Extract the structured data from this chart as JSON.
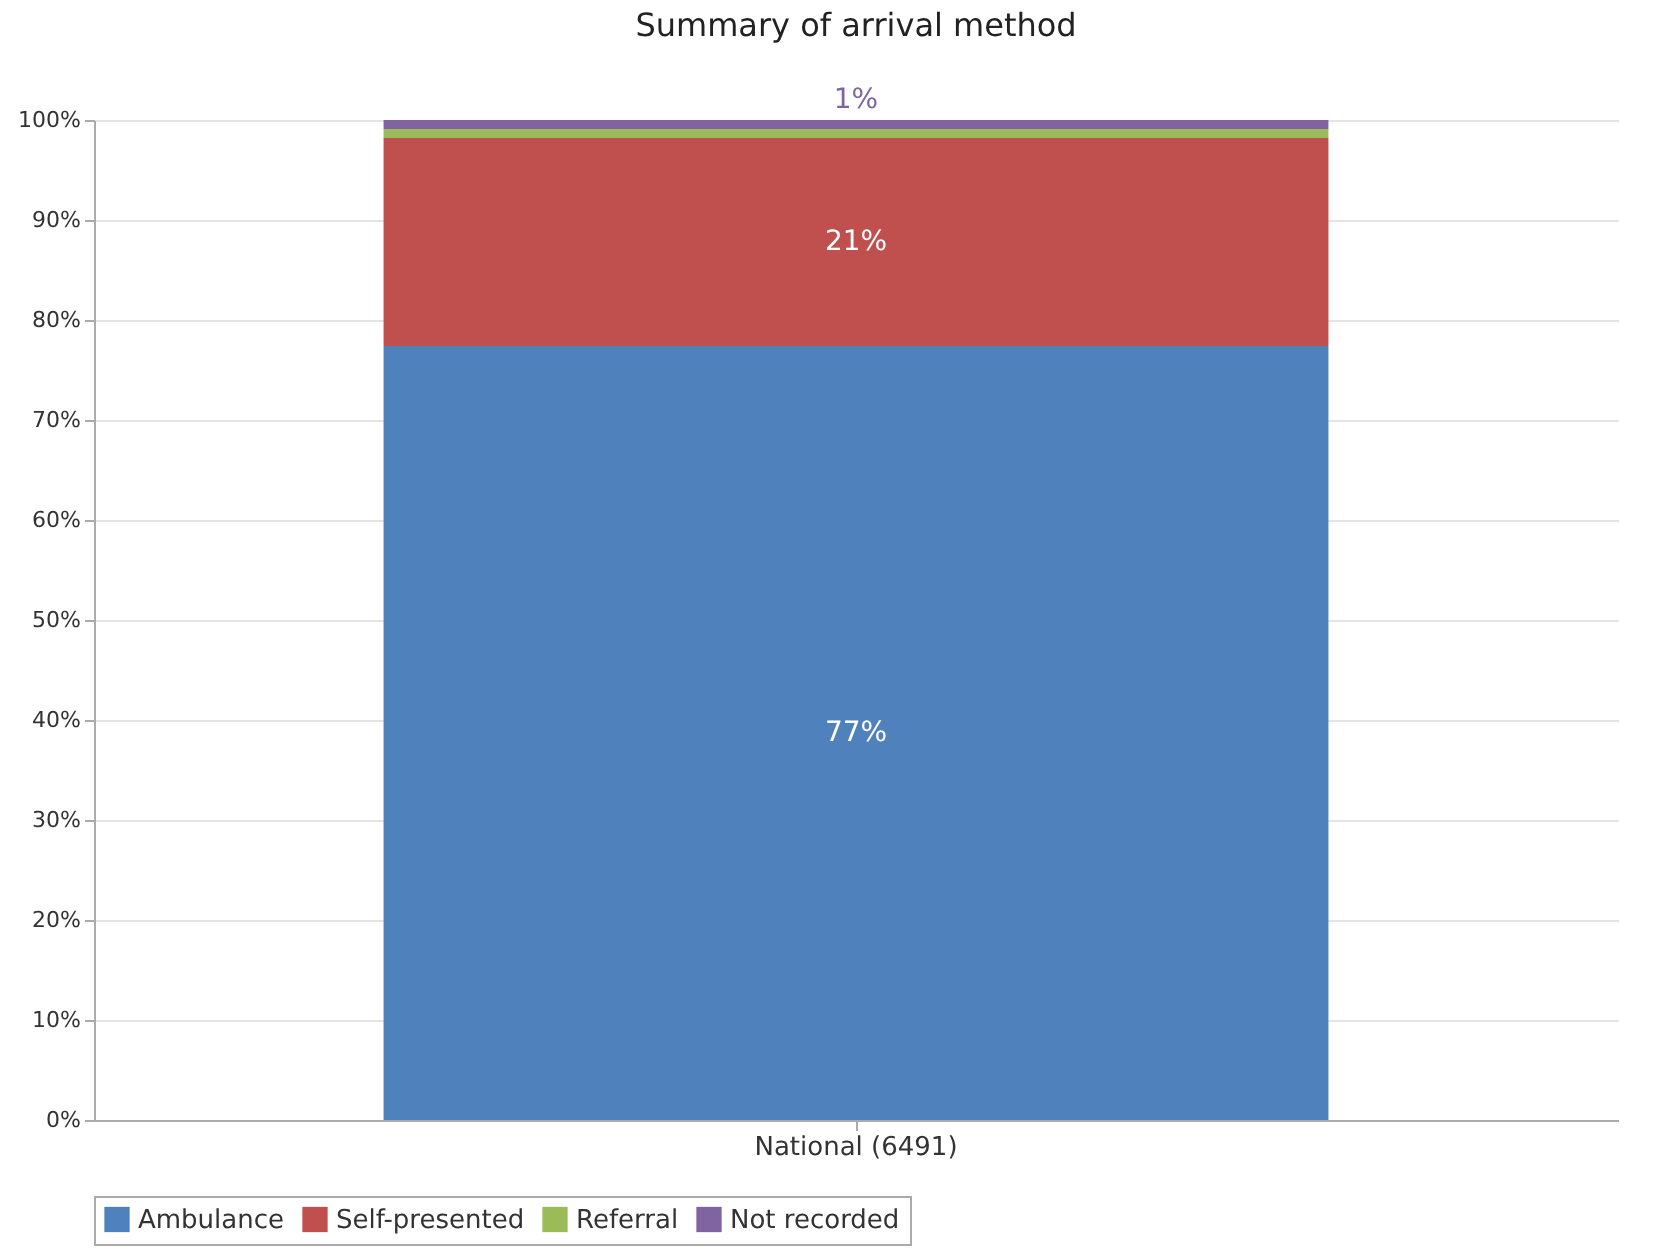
{
  "chart_data": {
    "type": "bar",
    "title": "Summary of arrival method",
    "categories": [
      "National (6491)"
    ],
    "stacked": true,
    "series": [
      {
        "name": "Ambulance",
        "color": "#4f81bd",
        "values": [
          77.4
        ],
        "value_labels": [
          "77%"
        ]
      },
      {
        "name": "Self-presented",
        "color": "#c0504d",
        "values": [
          20.8
        ],
        "value_labels": [
          "21%"
        ]
      },
      {
        "name": "Referral",
        "color": "#9bbb59",
        "values": [
          0.9
        ],
        "value_labels": [
          null
        ]
      },
      {
        "name": "Not recorded",
        "color": "#8064a2",
        "values": [
          0.9
        ],
        "value_labels": [
          "1%"
        ]
      }
    ],
    "ylim": [
      0,
      100
    ],
    "yticks": [
      {
        "value": 0,
        "label": "0%"
      },
      {
        "value": 10,
        "label": "10%"
      },
      {
        "value": 20,
        "label": "20%"
      },
      {
        "value": 30,
        "label": "30%"
      },
      {
        "value": 40,
        "label": "40%"
      },
      {
        "value": 50,
        "label": "50%"
      },
      {
        "value": 60,
        "label": "60%"
      },
      {
        "value": 70,
        "label": "70%"
      },
      {
        "value": 80,
        "label": "80%"
      },
      {
        "value": 90,
        "label": "90%"
      },
      {
        "value": 100,
        "label": "100%"
      }
    ],
    "grid": "y",
    "legend": "bottom"
  }
}
